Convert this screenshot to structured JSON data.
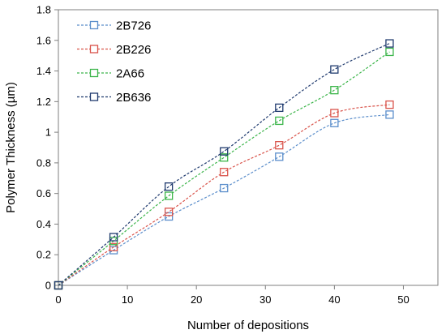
{
  "chart_data": {
    "type": "line",
    "title": "",
    "xlabel": "Number of depositions",
    "ylabel": "Polymer Thickness (µm)",
    "xlim": [
      0,
      55
    ],
    "ylim": [
      0,
      1.8
    ],
    "xticks": [
      0,
      10,
      20,
      30,
      40,
      50
    ],
    "yticks": [
      0,
      0.2,
      0.4,
      0.6,
      0.8,
      1,
      1.2,
      1.4,
      1.6,
      1.8
    ],
    "xtick_labels": [
      "0",
      "10",
      "20",
      "30",
      "40",
      "50"
    ],
    "ytick_labels": [
      "0",
      "0.2",
      "0.4",
      "0.6",
      "0.8",
      "1",
      "1.2",
      "1.4",
      "1.6",
      "1.8"
    ],
    "grid": false,
    "legend_position": "top-left",
    "marker": "open-square",
    "line_style": "dashed",
    "x": [
      0,
      8,
      16,
      24,
      32,
      40,
      48
    ],
    "series": [
      {
        "name": "2B726",
        "color": "#5b8ecb",
        "values": [
          0,
          0.23,
          0.45,
          0.635,
          0.84,
          1.06,
          1.115
        ]
      },
      {
        "name": "2B226",
        "color": "#d9534a",
        "values": [
          0,
          0.25,
          0.48,
          0.74,
          0.915,
          1.125,
          1.18
        ]
      },
      {
        "name": "2A66",
        "color": "#3cb54a",
        "values": [
          0,
          0.29,
          0.585,
          0.835,
          1.075,
          1.275,
          1.525
        ]
      },
      {
        "name": "2B636",
        "color": "#1f3a6e",
        "values": [
          0,
          0.315,
          0.645,
          0.875,
          1.16,
          1.41,
          1.58
        ]
      }
    ]
  }
}
